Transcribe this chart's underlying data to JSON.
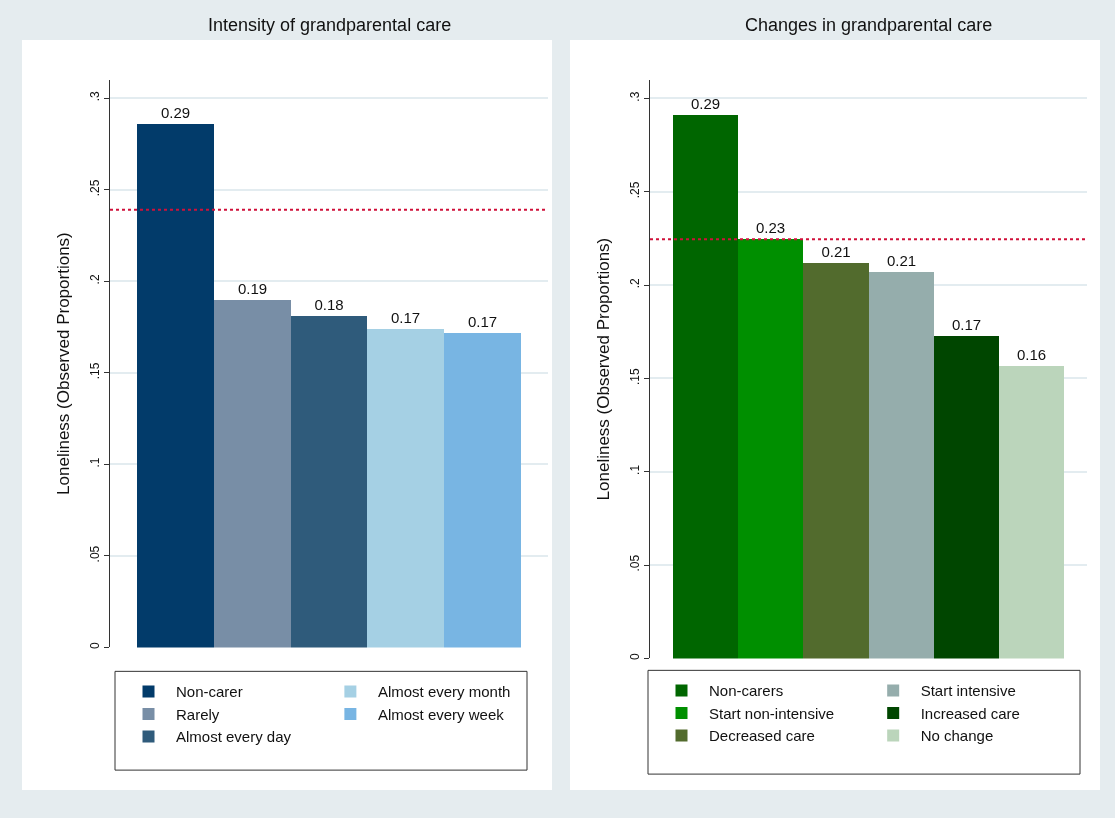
{
  "chart_data": [
    {
      "type": "bar",
      "title": "Intensity of grandparental care",
      "ylabel": "Loneliness (Observed Proportions)",
      "categories": [
        null,
        null,
        null,
        null,
        null
      ],
      "series": [
        {
          "name": "Non-carer",
          "color": "#023b6a",
          "values": [
            0.286,
            null,
            null,
            null,
            null
          ],
          "value_labels": [
            "0.29",
            null,
            null,
            null,
            null
          ]
        },
        {
          "name": "Rarely",
          "color": "#788ea6",
          "values": [
            null,
            0.19,
            null,
            null,
            null
          ],
          "value_labels": [
            null,
            "0.19",
            null,
            null,
            null
          ]
        },
        {
          "name": "Almost every day",
          "color": "#2f5b7b",
          "values": [
            null,
            null,
            0.181,
            null,
            null
          ],
          "value_labels": [
            null,
            null,
            "0.18",
            null,
            null
          ]
        },
        {
          "name": "Almost every month",
          "color": "#a5d0e4",
          "values": [
            null,
            null,
            null,
            0.174,
            null
          ],
          "value_labels": [
            null,
            null,
            null,
            "0.17",
            null
          ]
        },
        {
          "name": "Almost every week",
          "color": "#78b5e3",
          "values": [
            null,
            null,
            null,
            null,
            0.172
          ],
          "value_labels": [
            null,
            null,
            null,
            null,
            "0.17"
          ]
        }
      ],
      "ylim": [
        0,
        0.31
      ],
      "yticks": [
        0,
        {
          "value": 0.05,
          "label": ".05"
        },
        {
          "value": 0.1,
          "label": ".1"
        },
        {
          "value": 0.15,
          "label": ".15"
        },
        {
          "value": 0.2,
          "label": ".2"
        },
        {
          "value": 0.25,
          "label": ".25"
        },
        {
          "value": 0.3,
          "label": ".3"
        }
      ],
      "ref_lines": [
        {
          "axis": "y",
          "value": 0.239,
          "color": "#d0103a",
          "line_style": "dotted"
        }
      ],
      "grid": "y",
      "legend": "bottom",
      "tick_labels": "y"
    },
    {
      "type": "bar",
      "title": "Changes in grandparental care",
      "ylabel": "Loneliness (Observed Proportions)",
      "categories": [
        null,
        null,
        null,
        null,
        null,
        null
      ],
      "series": [
        {
          "name": "Non-carers",
          "color": "#006600",
          "values": [
            0.291,
            null,
            null,
            null,
            null,
            null
          ],
          "value_labels": [
            "0.29",
            null,
            null,
            null,
            null,
            null
          ]
        },
        {
          "name": "Start non-intensive",
          "color": "#008f00",
          "values": [
            null,
            0.225,
            null,
            null,
            null,
            null
          ],
          "value_labels": [
            null,
            "0.23",
            null,
            null,
            null,
            null
          ]
        },
        {
          "name": "Decreased care",
          "color": "#526b2d",
          "values": [
            null,
            null,
            0.212,
            null,
            null,
            null
          ],
          "value_labels": [
            null,
            null,
            "0.21",
            null,
            null,
            null
          ]
        },
        {
          "name": "Start intensive",
          "color": "#95adac",
          "values": [
            null,
            null,
            null,
            0.207,
            null,
            null
          ],
          "value_labels": [
            null,
            null,
            null,
            "0.21",
            null,
            null
          ]
        },
        {
          "name": "Increased care",
          "color": "#004600",
          "values": [
            null,
            null,
            null,
            null,
            0.173,
            null
          ],
          "value_labels": [
            null,
            null,
            null,
            null,
            "0.17",
            null
          ]
        },
        {
          "name": "No change",
          "color": "#bbd5bb",
          "values": [
            null,
            null,
            null,
            null,
            null,
            0.157
          ],
          "value_labels": [
            null,
            null,
            null,
            null,
            null,
            "0.16"
          ]
        }
      ],
      "ylim": [
        0,
        0.31
      ],
      "yticks": [
        0,
        {
          "value": 0.05,
          "label": ".05"
        },
        {
          "value": 0.1,
          "label": ".1"
        },
        {
          "value": 0.15,
          "label": ".15"
        },
        {
          "value": 0.2,
          "label": ".2"
        },
        {
          "value": 0.25,
          "label": ".25"
        },
        {
          "value": 0.3,
          "label": ".3"
        }
      ],
      "ref_lines": [
        {
          "axis": "y",
          "value": 0.2246,
          "color": "#d0103a",
          "line_style": "dotted"
        }
      ],
      "grid": "y",
      "legend": "bottom",
      "tick_labels": "y"
    }
  ]
}
